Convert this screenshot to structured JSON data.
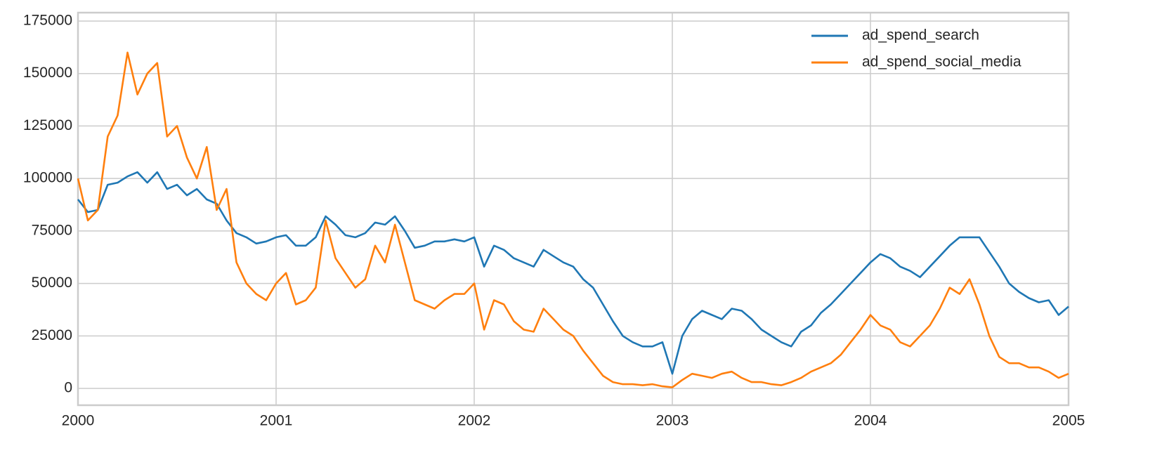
{
  "chart_data": {
    "type": "line",
    "x": [
      2000,
      2000.05,
      2000.1,
      2000.15,
      2000.2,
      2000.25,
      2000.3,
      2000.35,
      2000.4,
      2000.45,
      2000.5,
      2000.55,
      2000.6,
      2000.65,
      2000.7,
      2000.75,
      2000.8,
      2000.85,
      2000.9,
      2000.95,
      2001,
      2001.05,
      2001.1,
      2001.15,
      2001.2,
      2001.25,
      2001.3,
      2001.35,
      2001.4,
      2001.45,
      2001.5,
      2001.55,
      2001.6,
      2001.65,
      2001.7,
      2001.75,
      2001.8,
      2001.85,
      2001.9,
      2001.95,
      2002,
      2002.05,
      2002.1,
      2002.15,
      2002.2,
      2002.25,
      2002.3,
      2002.35,
      2002.4,
      2002.45,
      2002.5,
      2002.55,
      2002.6,
      2002.65,
      2002.7,
      2002.75,
      2002.8,
      2002.85,
      2002.9,
      2002.95,
      2003,
      2003.05,
      2003.1,
      2003.15,
      2003.2,
      2003.25,
      2003.3,
      2003.35,
      2003.4,
      2003.45,
      2003.5,
      2003.55,
      2003.6,
      2003.65,
      2003.7,
      2003.75,
      2003.8,
      2003.85,
      2003.9,
      2003.95,
      2004,
      2004.05,
      2004.1,
      2004.15,
      2004.2,
      2004.25,
      2004.3,
      2004.35,
      2004.4,
      2004.45,
      2004.5,
      2004.55,
      2004.6,
      2004.65,
      2004.7,
      2004.75,
      2004.8,
      2004.85,
      2004.9,
      2004.95,
      2005
    ],
    "series": [
      {
        "name": "ad_spend_search",
        "color": "#1f77b4",
        "values": [
          90000,
          84000,
          85000,
          97000,
          98000,
          101000,
          103000,
          98000,
          103000,
          95000,
          97000,
          92000,
          95000,
          90000,
          88000,
          80000,
          74000,
          72000,
          69000,
          70000,
          72000,
          73000,
          68000,
          68000,
          72000,
          82000,
          78000,
          73000,
          72000,
          74000,
          79000,
          78000,
          82000,
          75000,
          67000,
          68000,
          70000,
          70000,
          71000,
          70000,
          72000,
          58000,
          68000,
          66000,
          62000,
          60000,
          58000,
          66000,
          63000,
          60000,
          58000,
          52000,
          48000,
          40000,
          32000,
          25000,
          22000,
          20000,
          20000,
          22000,
          7000,
          25000,
          33000,
          37000,
          35000,
          33000,
          38000,
          37000,
          33000,
          28000,
          25000,
          22000,
          20000,
          27000,
          30000,
          36000,
          40000,
          45000,
          50000,
          55000,
          60000,
          64000,
          62000,
          58000,
          56000,
          53000,
          58000,
          63000,
          68000,
          72000,
          72000,
          72000,
          65000,
          58000,
          50000,
          46000,
          43000,
          41000,
          42000,
          35000,
          39000
        ]
      },
      {
        "name": "ad_spend_social_media",
        "color": "#ff7f0e",
        "values": [
          100000,
          80000,
          85000,
          120000,
          130000,
          160000,
          140000,
          150000,
          155000,
          120000,
          125000,
          110000,
          100000,
          115000,
          85000,
          95000,
          60000,
          50000,
          45000,
          42000,
          50000,
          55000,
          40000,
          42000,
          48000,
          80000,
          62000,
          55000,
          48000,
          52000,
          68000,
          60000,
          78000,
          60000,
          42000,
          40000,
          38000,
          42000,
          45000,
          45000,
          50000,
          28000,
          42000,
          40000,
          32000,
          28000,
          27000,
          38000,
          33000,
          28000,
          25000,
          18000,
          12000,
          6000,
          3000,
          2000,
          2000,
          1500,
          2000,
          1000,
          500,
          4000,
          7000,
          6000,
          5000,
          7000,
          8000,
          5000,
          3000,
          3000,
          2000,
          1500,
          3000,
          5000,
          8000,
          10000,
          12000,
          16000,
          22000,
          28000,
          35000,
          30000,
          28000,
          22000,
          20000,
          25000,
          30000,
          38000,
          48000,
          45000,
          52000,
          40000,
          25000,
          15000,
          12000,
          12000,
          10000,
          10000,
          8000,
          5000,
          7000
        ]
      }
    ],
    "xlim": [
      2000,
      2005
    ],
    "xticks": [
      2000,
      2001,
      2002,
      2003,
      2004,
      2005
    ],
    "ylim": [
      -8000,
      179000
    ],
    "yticks": [
      0,
      25000,
      50000,
      75000,
      100000,
      125000,
      150000,
      175000
    ],
    "grid": true,
    "legend": "upper right"
  }
}
